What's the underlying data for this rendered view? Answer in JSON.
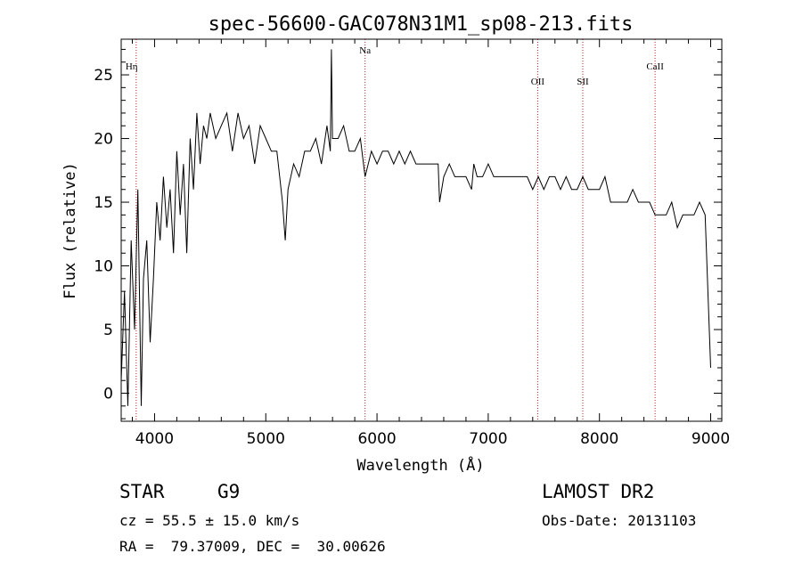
{
  "chart_data": {
    "type": "line",
    "title": "spec-56600-GAC078N31M1_sp08-213.fits",
    "xlabel": "Wavelength (Å)",
    "ylabel": "Flux (relative)",
    "xlim": [
      3700,
      9100
    ],
    "ylim": [
      -2.2,
      27.8
    ],
    "xticks": [
      4000,
      5000,
      6000,
      7000,
      8000,
      9000
    ],
    "yticks": [
      0,
      5,
      10,
      15,
      20,
      25
    ],
    "grid": false,
    "line_color": "#000000",
    "marker_color": "#b22222",
    "spectral_lines": [
      {
        "label": "Hη",
        "x": 3835
      },
      {
        "label": "Na",
        "x": 5893
      },
      {
        "label": "OII",
        "x": 7445
      },
      {
        "label": "SII",
        "x": 7850
      },
      {
        "label": "CaII",
        "x": 8500
      }
    ],
    "series": [
      {
        "x": [
          3700,
          3730,
          3760,
          3790,
          3820,
          3850,
          3880,
          3900,
          3930,
          3960,
          3990,
          4020,
          4050,
          4080,
          4110,
          4140,
          4170,
          4200,
          4230,
          4260,
          4290,
          4320,
          4350,
          4380,
          4410,
          4440,
          4470,
          4500,
          4550,
          4600,
          4650,
          4700,
          4750,
          4800,
          4850,
          4900,
          4950,
          5000,
          5050,
          5100,
          5150,
          5175,
          5200,
          5250,
          5300,
          5350,
          5400,
          5450,
          5500,
          5550,
          5580,
          5590,
          5600,
          5650,
          5700,
          5750,
          5800,
          5850,
          5893,
          5950,
          6000,
          6050,
          6100,
          6150,
          6200,
          6250,
          6300,
          6350,
          6400,
          6450,
          6500,
          6550,
          6563,
          6600,
          6650,
          6700,
          6750,
          6800,
          6850,
          6870,
          6900,
          6950,
          7000,
          7050,
          7100,
          7150,
          7200,
          7250,
          7300,
          7350,
          7400,
          7450,
          7500,
          7550,
          7600,
          7650,
          7700,
          7750,
          7800,
          7850,
          7900,
          7950,
          8000,
          8050,
          8100,
          8150,
          8200,
          8250,
          8300,
          8350,
          8400,
          8450,
          8500,
          8550,
          8600,
          8650,
          8700,
          8750,
          8800,
          8850,
          8900,
          8950,
          9000
        ],
        "y": [
          1,
          8,
          -1,
          12,
          5,
          16,
          -1,
          9,
          12,
          4,
          9,
          15,
          12,
          17,
          13,
          16,
          11,
          19,
          14,
          18,
          11,
          20,
          16,
          22,
          18,
          21,
          20,
          22,
          20,
          21,
          22,
          19,
          22,
          20,
          21,
          18,
          21,
          20,
          19,
          19,
          15,
          12,
          16,
          18,
          17,
          19,
          19,
          20,
          18,
          21,
          19,
          27,
          20,
          20,
          21,
          19,
          19,
          20,
          17,
          19,
          18,
          19,
          19,
          18,
          19,
          18,
          19,
          18,
          18,
          18,
          18,
          18,
          15,
          17,
          18,
          17,
          17,
          17,
          16,
          18,
          17,
          17,
          18,
          17,
          17,
          17,
          17,
          17,
          17,
          17,
          16,
          17,
          16,
          17,
          17,
          16,
          17,
          16,
          16,
          17,
          16,
          16,
          16,
          17,
          15,
          15,
          15,
          15,
          16,
          15,
          15,
          15,
          14,
          14,
          14,
          15,
          13,
          14,
          14,
          14,
          15,
          14,
          2
        ]
      }
    ]
  },
  "info": {
    "object_class": "STAR",
    "subclass": "G9",
    "survey": "LAMOST DR2",
    "cz_line": "cz = 55.5 ± 15.0 km/s",
    "obs_date": "Obs-Date: 20131103",
    "coords": "RA =  79.37009, DEC =  30.00626"
  }
}
